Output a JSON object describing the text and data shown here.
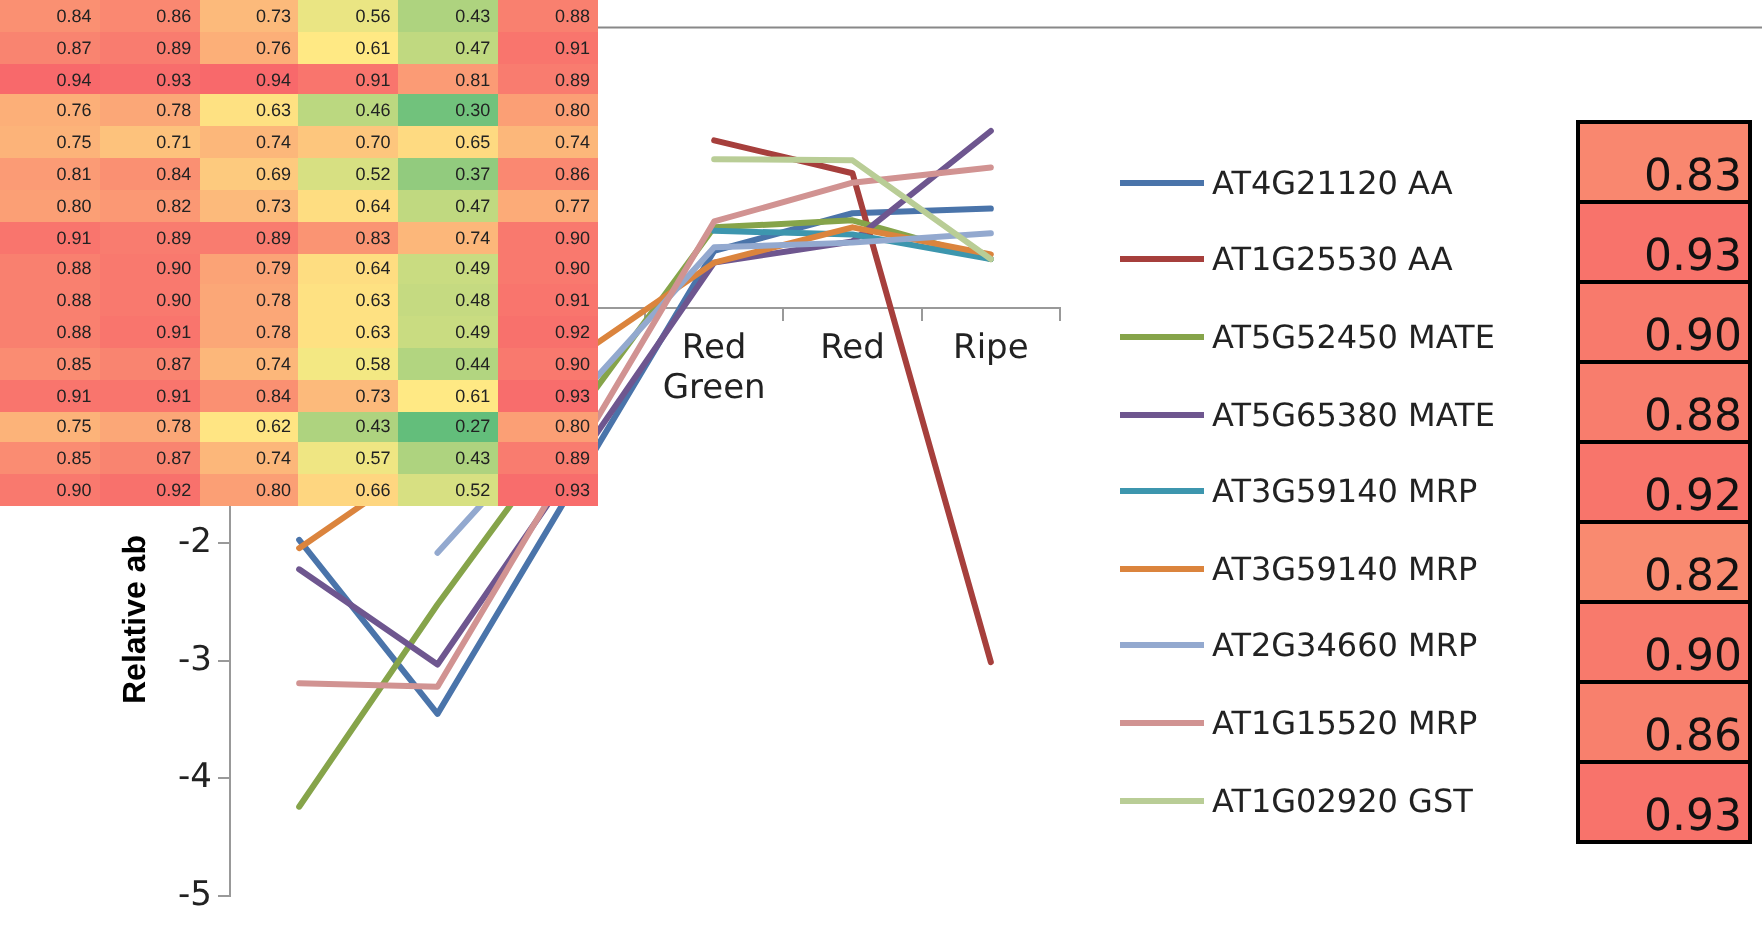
{
  "chart_data": [
    {
      "type": "line",
      "ylabel": "Relative ab",
      "categories": [
        null,
        null,
        null,
        "Red Green",
        "Red",
        "Ripe"
      ],
      "series": [
        {
          "name": "AT4G21120 AA",
          "color": "#4a74aa",
          "values": [
            -1.97,
            -3.45,
            null,
            0.49,
            0.81,
            0.85
          ]
        },
        {
          "name": "AT1G25530 AA",
          "color": "#a63f3c",
          "values": [
            null,
            null,
            null,
            1.43,
            1.15,
            -3.01
          ]
        },
        {
          "name": "AT5G52450 MATE",
          "color": "#86a44a",
          "values": [
            -4.24,
            -2.52,
            null,
            0.69,
            0.75,
            0.42
          ]
        },
        {
          "name": "AT5G65380 MATE",
          "color": "#6e568f",
          "values": [
            -2.22,
            -3.03,
            null,
            0.39,
            0.57,
            1.51
          ]
        },
        {
          "name": "AT3G59140 MRP",
          "color": "#3d96ae",
          "values": [
            null,
            null,
            null,
            0.66,
            0.63,
            0.42
          ]
        },
        {
          "name": "AT3G59140 MRP",
          "color": "#db843d",
          "values": [
            -2.04,
            null,
            null,
            0.39,
            0.69,
            0.46
          ]
        },
        {
          "name": "AT2G34660 MRP",
          "color": "#93a9cf",
          "values": [
            null,
            -2.08,
            null,
            0.52,
            0.56,
            0.64
          ]
        },
        {
          "name": "AT1G15520 MRP",
          "color": "#d19392",
          "values": [
            -3.19,
            -3.22,
            null,
            0.74,
            1.07,
            1.2
          ]
        },
        {
          "name": "AT1G02920 GST",
          "color": "#b9cd96",
          "values": [
            null,
            null,
            null,
            1.27,
            1.26,
            0.42
          ]
        }
      ],
      "ylim": [
        -5,
        2.4
      ],
      "yticks": [
        -5,
        -4,
        -3,
        -2
      ],
      "grid": false,
      "legend": "right",
      "marker": "none",
      "line_style": "solid"
    },
    {
      "type": "heatmap",
      "categories": [
        null,
        null,
        null,
        null,
        null,
        null
      ],
      "y_categories": [
        null,
        null,
        null,
        null,
        null,
        null,
        null,
        null,
        null,
        null,
        null,
        null,
        null,
        null,
        null,
        null
      ],
      "colors": [
        "#63be7b",
        "#ffeb84",
        "#f8696b"
      ],
      "cells": [
        [
          0.84,
          0.86,
          0.73,
          0.56,
          0.43,
          0.88
        ],
        [
          0.87,
          0.89,
          0.76,
          0.61,
          0.47,
          0.91
        ],
        [
          0.94,
          0.93,
          0.94,
          0.91,
          0.81,
          0.89
        ],
        [
          0.76,
          0.78,
          0.63,
          0.46,
          0.3,
          0.8
        ],
        [
          0.75,
          0.71,
          0.74,
          0.7,
          0.65,
          0.74
        ],
        [
          0.81,
          0.84,
          0.69,
          0.52,
          0.37,
          0.86
        ],
        [
          0.8,
          0.82,
          0.73,
          0.64,
          0.47,
          0.77
        ],
        [
          0.91,
          0.89,
          0.89,
          0.83,
          0.74,
          0.9
        ],
        [
          0.88,
          0.9,
          0.79,
          0.64,
          0.49,
          0.9
        ],
        [
          0.88,
          0.9,
          0.78,
          0.63,
          0.48,
          0.91
        ],
        [
          0.88,
          0.91,
          0.78,
          0.63,
          0.49,
          0.92
        ],
        [
          0.85,
          0.87,
          0.74,
          0.58,
          0.44,
          0.9
        ],
        [
          0.91,
          0.91,
          0.84,
          0.73,
          0.61,
          0.93
        ],
        [
          0.75,
          0.78,
          0.62,
          0.43,
          0.27,
          0.8
        ],
        [
          0.85,
          0.87,
          0.74,
          0.57,
          0.43,
          0.89
        ],
        [
          0.9,
          0.92,
          0.8,
          0.66,
          0.52,
          0.93
        ]
      ],
      "cell_labels": [
        [
          "0.84",
          "0.86",
          "0.73",
          "0.56",
          "0.43",
          "0.88"
        ],
        [
          "0.87",
          "0.89",
          "0.76",
          "0.61",
          "0.47",
          "0.91"
        ],
        [
          "0.94",
          "0.93",
          "0.94",
          "0.91",
          "0.81",
          "0.89"
        ],
        [
          "0.76",
          "0.78",
          "0.63",
          "0.46",
          "0.30",
          "0.80"
        ],
        [
          "0.75",
          "0.71",
          "0.74",
          "0.70",
          "0.65",
          "0.74"
        ],
        [
          "0.81",
          "0.84",
          "0.69",
          "0.52",
          "0.37",
          "0.86"
        ],
        [
          "0.80",
          "0.82",
          "0.73",
          "0.64",
          "0.47",
          "0.77"
        ],
        [
          "0.91",
          "0.89",
          "0.89",
          "0.83",
          "0.74",
          "0.90"
        ],
        [
          "0.88",
          "0.90",
          "0.79",
          "0.64",
          "0.49",
          "0.90"
        ],
        [
          "0.88",
          "0.90",
          "0.78",
          "0.63",
          "0.48",
          "0.91"
        ],
        [
          "0.88",
          "0.91",
          "0.78",
          "0.63",
          "0.49",
          "0.92"
        ],
        [
          "0.85",
          "0.87",
          "0.74",
          "0.58",
          "0.44",
          "0.90"
        ],
        [
          "0.91",
          "0.91",
          "0.84",
          "0.73",
          "0.61",
          "0.93"
        ],
        [
          "0.75",
          "0.78",
          "0.62",
          "0.43",
          "0.27",
          "0.80"
        ],
        [
          "0.85",
          "0.87",
          "0.74",
          "0.57",
          "0.43",
          "0.89"
        ],
        [
          "0.90",
          "0.92",
          "0.80",
          "0.66",
          "0.52",
          "0.93"
        ]
      ]
    },
    {
      "type": "heatmap",
      "categories": [
        null
      ],
      "y_categories": [
        null,
        null,
        null,
        null,
        null,
        null,
        null,
        null,
        null
      ],
      "cells": [
        [
          0.83
        ],
        [
          0.93
        ],
        [
          0.9
        ],
        [
          0.88
        ],
        [
          0.92
        ],
        [
          0.82
        ],
        [
          0.9
        ],
        [
          0.86
        ],
        [
          0.93
        ]
      ],
      "cell_labels": [
        [
          "0.83"
        ],
        [
          "0.93"
        ],
        [
          "0.90"
        ],
        [
          "0.88"
        ],
        [
          "0.92"
        ],
        [
          "0.82"
        ],
        [
          "0.90"
        ],
        [
          "0.86"
        ],
        [
          "0.93"
        ]
      ],
      "colors": [
        "#f9876f",
        "#f8736b",
        "#f87a6c",
        "#f87d6d",
        "#f8756b",
        "#f98a70",
        "#f87a6c",
        "#f8806d",
        "#f8736b"
      ]
    }
  ]
}
